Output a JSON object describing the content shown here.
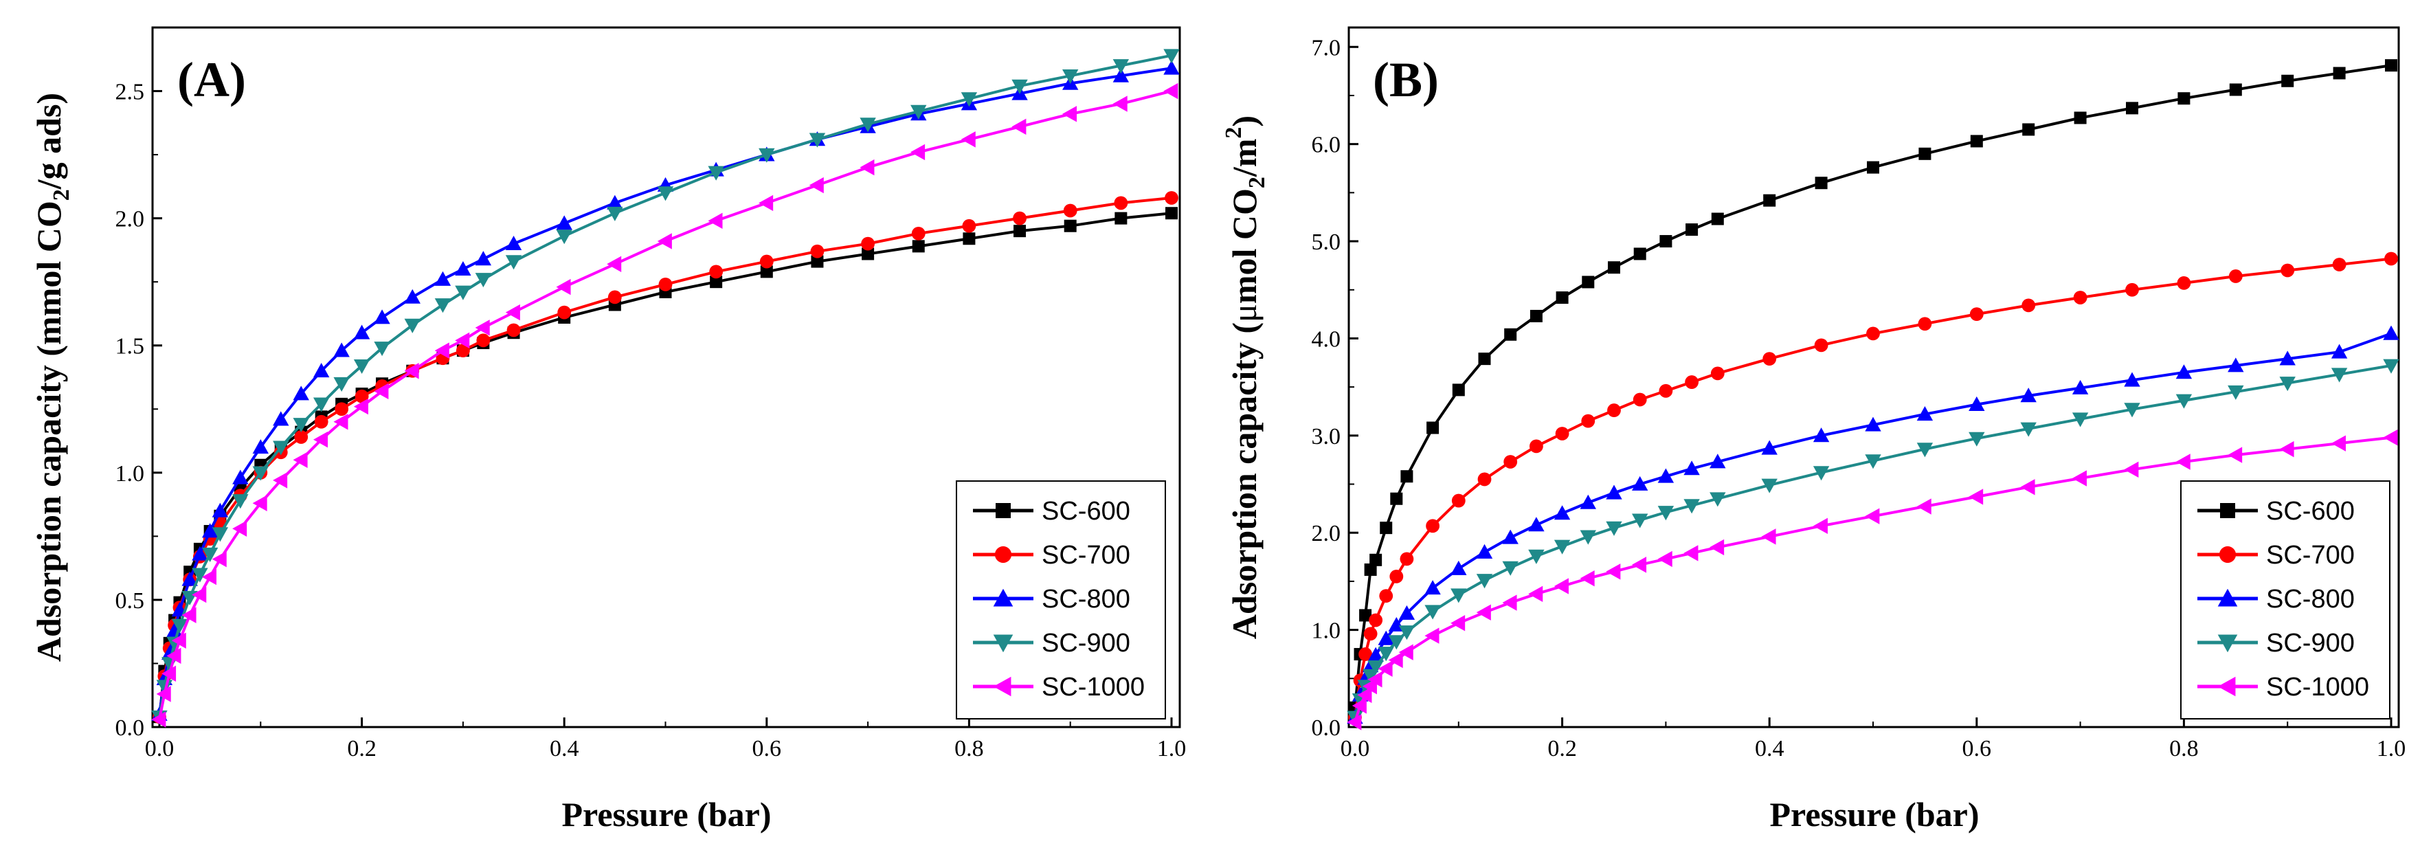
{
  "chart_data": [
    {
      "type": "line",
      "panel_label": "(A)",
      "xlabel": "Pressure (bar)",
      "ylabel": {
        "prefix": "Adsorption capacity (mmol CO",
        "sub": "2",
        "suffix": "/g ads)"
      },
      "xlim": [
        0.0,
        1.0
      ],
      "ylim": [
        0.0,
        2.75
      ],
      "x_ticks": [
        "0.0",
        "0.2",
        "0.4",
        "0.6",
        "0.8",
        "1.0"
      ],
      "y_ticks": [
        "0.0",
        "0.5",
        "1.0",
        "1.5",
        "2.0",
        "2.5"
      ],
      "legend_position": "bottom-right",
      "series": [
        {
          "name": "SC-600",
          "color": "#000000",
          "marker": "square",
          "x": [
            0.0,
            0.005,
            0.01,
            0.015,
            0.02,
            0.03,
            0.04,
            0.05,
            0.06,
            0.08,
            0.1,
            0.12,
            0.14,
            0.16,
            0.18,
            0.2,
            0.22,
            0.25,
            0.28,
            0.3,
            0.32,
            0.35,
            0.4,
            0.45,
            0.5,
            0.55,
            0.6,
            0.65,
            0.7,
            0.75,
            0.8,
            0.85,
            0.9,
            0.95,
            1.0
          ],
          "y": [
            0.04,
            0.22,
            0.33,
            0.42,
            0.49,
            0.61,
            0.7,
            0.77,
            0.83,
            0.94,
            1.03,
            1.1,
            1.16,
            1.22,
            1.27,
            1.31,
            1.35,
            1.4,
            1.45,
            1.48,
            1.51,
            1.55,
            1.61,
            1.66,
            1.71,
            1.75,
            1.79,
            1.83,
            1.86,
            1.89,
            1.92,
            1.95,
            1.97,
            2.0,
            2.02
          ]
        },
        {
          "name": "SC-700",
          "color": "#ff0000",
          "marker": "circle",
          "x": [
            0.0,
            0.005,
            0.01,
            0.015,
            0.02,
            0.03,
            0.04,
            0.05,
            0.06,
            0.08,
            0.1,
            0.12,
            0.14,
            0.16,
            0.18,
            0.2,
            0.22,
            0.25,
            0.28,
            0.3,
            0.32,
            0.35,
            0.4,
            0.45,
            0.5,
            0.55,
            0.6,
            0.65,
            0.7,
            0.75,
            0.8,
            0.85,
            0.9,
            0.95,
            1.0
          ],
          "y": [
            0.04,
            0.2,
            0.31,
            0.4,
            0.47,
            0.58,
            0.67,
            0.74,
            0.8,
            0.91,
            1.0,
            1.08,
            1.14,
            1.2,
            1.25,
            1.3,
            1.34,
            1.4,
            1.45,
            1.48,
            1.52,
            1.56,
            1.63,
            1.69,
            1.74,
            1.79,
            1.83,
            1.87,
            1.9,
            1.94,
            1.97,
            2.0,
            2.03,
            2.06,
            2.08
          ]
        },
        {
          "name": "SC-800",
          "color": "#0000ff",
          "marker": "triangle-up",
          "x": [
            0.0,
            0.005,
            0.01,
            0.015,
            0.02,
            0.03,
            0.04,
            0.05,
            0.06,
            0.08,
            0.1,
            0.12,
            0.14,
            0.16,
            0.18,
            0.2,
            0.22,
            0.25,
            0.28,
            0.3,
            0.32,
            0.35,
            0.4,
            0.45,
            0.5,
            0.55,
            0.6,
            0.65,
            0.7,
            0.75,
            0.8,
            0.85,
            0.9,
            0.95,
            1.0
          ],
          "y": [
            0.05,
            0.19,
            0.29,
            0.38,
            0.46,
            0.58,
            0.68,
            0.77,
            0.85,
            0.98,
            1.1,
            1.21,
            1.31,
            1.4,
            1.48,
            1.55,
            1.61,
            1.69,
            1.76,
            1.8,
            1.84,
            1.9,
            1.98,
            2.06,
            2.13,
            2.19,
            2.25,
            2.31,
            2.36,
            2.41,
            2.45,
            2.49,
            2.53,
            2.56,
            2.59
          ]
        },
        {
          "name": "SC-900",
          "color": "#1f8a8a",
          "marker": "triangle-down",
          "x": [
            0.0,
            0.005,
            0.01,
            0.015,
            0.02,
            0.03,
            0.04,
            0.05,
            0.06,
            0.08,
            0.1,
            0.12,
            0.14,
            0.16,
            0.18,
            0.2,
            0.22,
            0.25,
            0.28,
            0.3,
            0.32,
            0.35,
            0.4,
            0.45,
            0.5,
            0.55,
            0.6,
            0.65,
            0.7,
            0.75,
            0.8,
            0.85,
            0.9,
            0.95,
            1.0
          ],
          "y": [
            0.04,
            0.16,
            0.25,
            0.33,
            0.4,
            0.51,
            0.6,
            0.68,
            0.76,
            0.89,
            1.0,
            1.1,
            1.19,
            1.27,
            1.35,
            1.42,
            1.49,
            1.58,
            1.66,
            1.71,
            1.76,
            1.83,
            1.93,
            2.02,
            2.1,
            2.18,
            2.25,
            2.31,
            2.37,
            2.42,
            2.47,
            2.52,
            2.56,
            2.6,
            2.64
          ]
        },
        {
          "name": "SC-1000",
          "color": "#ff00ff",
          "marker": "triangle-left",
          "x": [
            0.0,
            0.005,
            0.01,
            0.015,
            0.02,
            0.03,
            0.04,
            0.05,
            0.06,
            0.08,
            0.1,
            0.12,
            0.14,
            0.16,
            0.18,
            0.2,
            0.22,
            0.25,
            0.28,
            0.3,
            0.32,
            0.35,
            0.4,
            0.45,
            0.5,
            0.55,
            0.6,
            0.65,
            0.7,
            0.75,
            0.8,
            0.85,
            0.9,
            0.95,
            1.0
          ],
          "y": [
            0.03,
            0.13,
            0.21,
            0.28,
            0.34,
            0.44,
            0.52,
            0.59,
            0.66,
            0.78,
            0.88,
            0.97,
            1.05,
            1.13,
            1.2,
            1.26,
            1.32,
            1.4,
            1.48,
            1.52,
            1.57,
            1.63,
            1.73,
            1.82,
            1.91,
            1.99,
            2.06,
            2.13,
            2.2,
            2.26,
            2.31,
            2.36,
            2.41,
            2.45,
            2.5
          ]
        }
      ]
    },
    {
      "type": "line",
      "panel_label": "(B)",
      "xlabel": "Pressure (bar)",
      "ylabel": {
        "prefix": "Adsorption capacity (",
        "mu": "μ",
        "mid": "mol CO",
        "sub": "2",
        "slash": "/m",
        "sup": "2",
        "suffix": ")"
      },
      "xlim": [
        0.0,
        1.0
      ],
      "ylim": [
        0.0,
        7.2
      ],
      "x_ticks": [
        "0.0",
        "0.2",
        "0.4",
        "0.6",
        "0.8",
        "1.0"
      ],
      "y_ticks": [
        "0.0",
        "1.0",
        "2.0",
        "3.0",
        "4.0",
        "5.0",
        "6.0",
        "7.0"
      ],
      "legend_position": "bottom-right",
      "series": [
        {
          "name": "SC-600",
          "color": "#000000",
          "marker": "square",
          "x": [
            0.0,
            0.005,
            0.01,
            0.015,
            0.02,
            0.03,
            0.04,
            0.05,
            0.075,
            0.1,
            0.125,
            0.15,
            0.175,
            0.2,
            0.225,
            0.25,
            0.275,
            0.3,
            0.325,
            0.35,
            0.4,
            0.45,
            0.5,
            0.55,
            0.6,
            0.65,
            0.7,
            0.75,
            0.8,
            0.85,
            0.9,
            0.95,
            1.0
          ],
          "y": [
            0.2,
            0.75,
            1.15,
            1.62,
            1.72,
            2.05,
            2.35,
            2.58,
            3.08,
            3.47,
            3.79,
            4.04,
            4.23,
            4.42,
            4.58,
            4.73,
            4.87,
            5.0,
            5.12,
            5.23,
            5.42,
            5.6,
            5.76,
            5.9,
            6.03,
            6.15,
            6.27,
            6.37,
            6.47,
            6.56,
            6.65,
            6.73,
            6.81
          ]
        },
        {
          "name": "SC-700",
          "color": "#ff0000",
          "marker": "circle",
          "x": [
            0.0,
            0.005,
            0.01,
            0.015,
            0.02,
            0.03,
            0.04,
            0.05,
            0.075,
            0.1,
            0.125,
            0.15,
            0.175,
            0.2,
            0.225,
            0.25,
            0.275,
            0.3,
            0.325,
            0.35,
            0.4,
            0.45,
            0.5,
            0.55,
            0.6,
            0.65,
            0.7,
            0.75,
            0.8,
            0.85,
            0.9,
            0.95,
            1.0
          ],
          "y": [
            0.1,
            0.48,
            0.75,
            0.96,
            1.1,
            1.35,
            1.55,
            1.73,
            2.07,
            2.33,
            2.55,
            2.73,
            2.89,
            3.02,
            3.15,
            3.26,
            3.37,
            3.46,
            3.55,
            3.64,
            3.79,
            3.93,
            4.05,
            4.15,
            4.25,
            4.34,
            4.42,
            4.5,
            4.57,
            4.64,
            4.7,
            4.76,
            4.82
          ]
        },
        {
          "name": "SC-800",
          "color": "#0000ff",
          "marker": "triangle-up",
          "x": [
            0.0,
            0.005,
            0.01,
            0.015,
            0.02,
            0.03,
            0.04,
            0.05,
            0.075,
            0.1,
            0.125,
            0.15,
            0.175,
            0.2,
            0.225,
            0.25,
            0.275,
            0.3,
            0.325,
            0.35,
            0.4,
            0.45,
            0.5,
            0.55,
            0.6,
            0.65,
            0.7,
            0.75,
            0.8,
            0.85,
            0.9,
            0.95,
            1.0
          ],
          "y": [
            0.1,
            0.33,
            0.5,
            0.63,
            0.74,
            0.91,
            1.05,
            1.17,
            1.43,
            1.63,
            1.8,
            1.95,
            2.08,
            2.2,
            2.31,
            2.41,
            2.5,
            2.58,
            2.66,
            2.73,
            2.87,
            3.0,
            3.11,
            3.22,
            3.32,
            3.41,
            3.49,
            3.57,
            3.65,
            3.72,
            3.79,
            3.86,
            4.05
          ]
        },
        {
          "name": "SC-900",
          "color": "#1f8a8a",
          "marker": "triangle-down",
          "x": [
            0.0,
            0.005,
            0.01,
            0.015,
            0.02,
            0.03,
            0.04,
            0.05,
            0.075,
            0.1,
            0.125,
            0.15,
            0.175,
            0.2,
            0.225,
            0.25,
            0.275,
            0.3,
            0.325,
            0.35,
            0.4,
            0.45,
            0.5,
            0.55,
            0.6,
            0.65,
            0.7,
            0.75,
            0.8,
            0.85,
            0.9,
            0.95,
            1.0
          ],
          "y": [
            0.1,
            0.28,
            0.42,
            0.53,
            0.62,
            0.76,
            0.88,
            0.98,
            1.19,
            1.36,
            1.51,
            1.64,
            1.76,
            1.86,
            1.96,
            2.05,
            2.13,
            2.21,
            2.28,
            2.35,
            2.49,
            2.62,
            2.74,
            2.86,
            2.97,
            3.07,
            3.17,
            3.27,
            3.36,
            3.45,
            3.54,
            3.63,
            3.72
          ]
        },
        {
          "name": "SC-1000",
          "color": "#ff00ff",
          "marker": "triangle-left",
          "x": [
            0.0,
            0.005,
            0.01,
            0.015,
            0.02,
            0.03,
            0.04,
            0.05,
            0.075,
            0.1,
            0.125,
            0.15,
            0.175,
            0.2,
            0.225,
            0.25,
            0.275,
            0.3,
            0.325,
            0.35,
            0.4,
            0.45,
            0.5,
            0.55,
            0.6,
            0.65,
            0.7,
            0.75,
            0.8,
            0.85,
            0.9,
            0.95,
            1.0
          ],
          "y": [
            0.05,
            0.22,
            0.33,
            0.42,
            0.49,
            0.6,
            0.69,
            0.77,
            0.94,
            1.07,
            1.18,
            1.28,
            1.37,
            1.45,
            1.53,
            1.6,
            1.67,
            1.73,
            1.79,
            1.85,
            1.96,
            2.07,
            2.17,
            2.27,
            2.37,
            2.47,
            2.56,
            2.65,
            2.73,
            2.8,
            2.86,
            2.92,
            2.98
          ]
        }
      ]
    }
  ]
}
